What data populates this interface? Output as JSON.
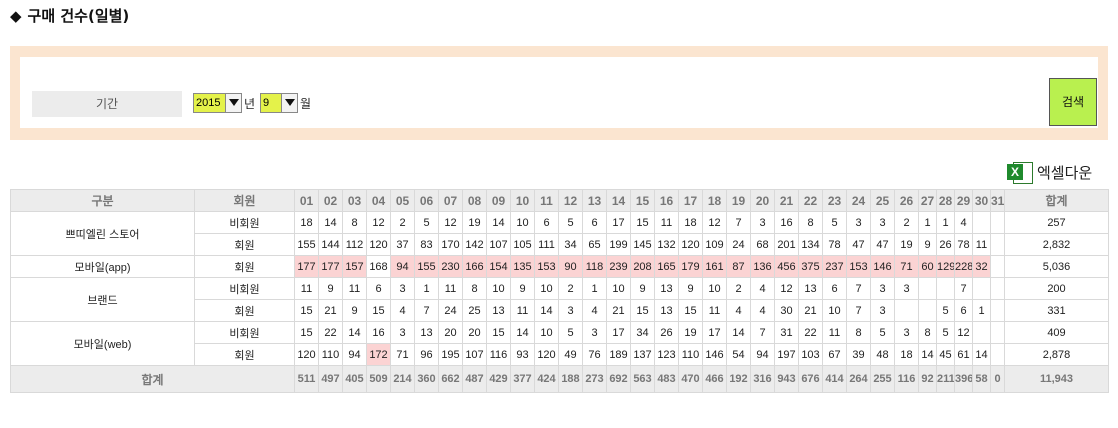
{
  "page_title": "구매 건수(일별)",
  "filter": {
    "period_label": "기간",
    "year_value": "2015",
    "year_unit": "년",
    "month_value": "9",
    "month_unit": "월",
    "search_label": "검색"
  },
  "excel_label": "엑셀다운",
  "table": {
    "header": {
      "category": "구분",
      "member_type": "회원",
      "total": "합계",
      "days": [
        "01",
        "02",
        "03",
        "04",
        "05",
        "06",
        "07",
        "08",
        "09",
        "10",
        "11",
        "12",
        "13",
        "14",
        "15",
        "16",
        "17",
        "18",
        "19",
        "20",
        "21",
        "22",
        "23",
        "24",
        "25",
        "26",
        "27",
        "28",
        "29",
        "30",
        "31"
      ]
    },
    "rows": [
      {
        "category": "쁘띠엘린 스토어",
        "type": "비회원",
        "values": [
          "18",
          "14",
          "8",
          "12",
          "2",
          "5",
          "12",
          "19",
          "14",
          "10",
          "6",
          "5",
          "6",
          "17",
          "15",
          "11",
          "18",
          "12",
          "7",
          "3",
          "16",
          "8",
          "5",
          "3",
          "3",
          "2",
          "1",
          "1",
          "4",
          "",
          ""
        ],
        "total": "257"
      },
      {
        "type": "회원",
        "values": [
          "155",
          "144",
          "112",
          "120",
          "37",
          "83",
          "170",
          "142",
          "107",
          "105",
          "111",
          "34",
          "65",
          "199",
          "145",
          "132",
          "120",
          "109",
          "24",
          "68",
          "201",
          "134",
          "78",
          "47",
          "47",
          "19",
          "9",
          "26",
          "78",
          "11",
          ""
        ],
        "total": "2,832"
      },
      {
        "category": "모바일(app)",
        "type": "회원",
        "values": [
          "177",
          "177",
          "157",
          "168",
          "94",
          "155",
          "230",
          "166",
          "154",
          "135",
          "153",
          "90",
          "118",
          "239",
          "208",
          "165",
          "179",
          "161",
          "87",
          "136",
          "456",
          "375",
          "237",
          "153",
          "146",
          "71",
          "60",
          "129",
          "228",
          "32",
          ""
        ],
        "total": "5,036",
        "highlight": [
          1,
          2,
          3,
          5,
          6,
          7,
          8,
          9,
          10,
          11,
          12,
          13,
          14,
          15,
          16,
          17,
          18,
          19,
          20,
          21,
          22,
          23,
          24,
          25,
          26,
          27,
          28,
          29,
          30
        ]
      },
      {
        "category": "브랜드",
        "type": "비회원",
        "values": [
          "11",
          "9",
          "11",
          "6",
          "3",
          "1",
          "11",
          "8",
          "10",
          "9",
          "10",
          "2",
          "1",
          "10",
          "9",
          "13",
          "9",
          "10",
          "2",
          "4",
          "12",
          "13",
          "6",
          "7",
          "3",
          "3",
          "",
          "",
          "7",
          "",
          ""
        ],
        "total": "200"
      },
      {
        "type": "회원",
        "values": [
          "15",
          "21",
          "9",
          "15",
          "4",
          "7",
          "24",
          "25",
          "13",
          "11",
          "14",
          "3",
          "4",
          "21",
          "15",
          "13",
          "15",
          "11",
          "4",
          "4",
          "30",
          "21",
          "10",
          "7",
          "3",
          "",
          "",
          "5",
          "6",
          "1",
          ""
        ],
        "total": "331"
      },
      {
        "category": "모바일(web)",
        "type": "비회원",
        "values": [
          "15",
          "22",
          "14",
          "16",
          "3",
          "13",
          "20",
          "20",
          "15",
          "14",
          "10",
          "5",
          "3",
          "17",
          "34",
          "26",
          "19",
          "17",
          "14",
          "7",
          "31",
          "22",
          "11",
          "8",
          "5",
          "3",
          "8",
          "5",
          "12",
          "",
          ""
        ],
        "total": "409"
      },
      {
        "type": "회원",
        "values": [
          "120",
          "110",
          "94",
          "172",
          "71",
          "96",
          "195",
          "107",
          "116",
          "93",
          "120",
          "49",
          "76",
          "189",
          "137",
          "123",
          "110",
          "146",
          "54",
          "94",
          "197",
          "103",
          "67",
          "39",
          "48",
          "18",
          "14",
          "45",
          "61",
          "14",
          ""
        ],
        "total": "2,878",
        "highlight": [
          4
        ]
      }
    ],
    "total_row": {
      "label": "합계",
      "values": [
        "511",
        "497",
        "405",
        "509",
        "214",
        "360",
        "662",
        "487",
        "429",
        "377",
        "424",
        "188",
        "273",
        "692",
        "563",
        "483",
        "470",
        "466",
        "192",
        "316",
        "943",
        "676",
        "414",
        "264",
        "255",
        "116",
        "92",
        "211",
        "396",
        "58",
        "0"
      ],
      "total": "11,943"
    }
  }
}
